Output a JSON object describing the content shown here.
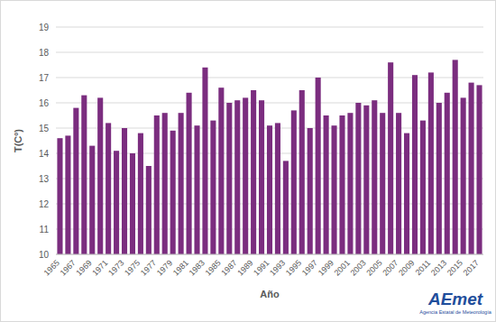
{
  "chart_data": {
    "type": "bar",
    "x_label": "Año",
    "y_label": "T(Cº)",
    "annotations": [
      "AEmet",
      "Agencia Estatal de Meteorología"
    ],
    "categories": [
      "1965",
      null,
      "1967",
      null,
      "1969",
      null,
      "1971",
      null,
      "1973",
      null,
      "1975",
      null,
      "1977",
      null,
      "1979",
      null,
      "1981",
      null,
      "1983",
      null,
      "1985",
      null,
      "1987",
      null,
      "1989",
      null,
      "1991",
      null,
      "1993",
      null,
      "1995",
      null,
      "1997",
      null,
      "1999",
      null,
      "2001",
      null,
      "2003",
      null,
      "2005",
      null,
      "2007",
      null,
      "2009",
      null,
      "2011",
      null,
      "2013",
      null,
      "2015",
      null,
      "2017"
    ],
    "values": [
      14.6,
      14.7,
      15.8,
      16.3,
      14.3,
      16.2,
      15.2,
      14.1,
      15.0,
      14.0,
      14.8,
      13.5,
      15.5,
      15.6,
      14.9,
      15.6,
      16.4,
      15.1,
      17.4,
      15.3,
      16.6,
      16.0,
      16.1,
      16.2,
      16.5,
      16.1,
      15.1,
      15.2,
      13.7,
      15.7,
      16.5,
      15.0,
      17.0,
      15.5,
      15.1,
      15.5,
      15.6,
      16.0,
      15.9,
      16.1,
      15.6,
      17.6,
      15.6,
      14.8,
      17.1,
      15.3,
      17.2,
      16.0,
      16.4,
      17.7,
      16.2,
      16.8,
      16.7
    ],
    "color": "#7b2d7f",
    "ylim": [
      10,
      19
    ],
    "yticks": [
      10,
      11,
      12,
      13,
      14,
      15,
      16,
      17,
      18,
      19
    ],
    "grid": true
  }
}
